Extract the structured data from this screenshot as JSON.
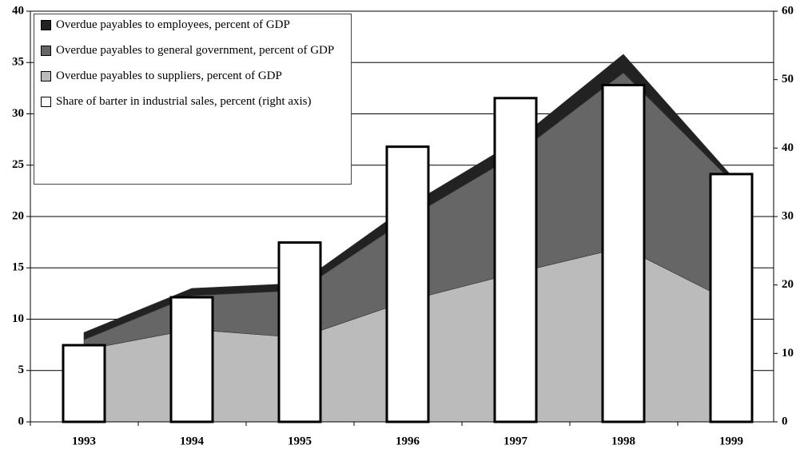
{
  "chart_data": {
    "type": "stacked-area-bar",
    "categories": [
      "1993",
      "1994",
      "1995",
      "1996",
      "1997",
      "1998",
      "1999"
    ],
    "series": [
      {
        "name": "Overdue payables to suppliers, percent of GDP",
        "color": "#bbbbbb",
        "kind": "area",
        "values": [
          7.0,
          9.0,
          8.2,
          11.8,
          14.5,
          17.0,
          11.7
        ]
      },
      {
        "name": "Overdue payables to general government, percent of GDP",
        "color": "#666666",
        "kind": "area",
        "values": [
          1.0,
          3.3,
          4.6,
          8.0,
          11.5,
          17.0,
          11.8
        ]
      },
      {
        "name": "Overdue payables to employees, percent of GDP",
        "color": "#222222",
        "kind": "area",
        "values": [
          0.7,
          0.7,
          0.7,
          1.2,
          1.3,
          1.8,
          0.5
        ]
      },
      {
        "name": "Share of barter in industrial sales, percent (right axis)",
        "color": "#ffffff",
        "kind": "bar",
        "axis": "y2",
        "values": [
          11.2,
          18.2,
          26.2,
          40.2,
          47.3,
          49.2,
          36.2
        ]
      }
    ],
    "legend_order": [
      2,
      1,
      0,
      3
    ],
    "ylim": [
      0,
      40
    ],
    "yticks": [
      0,
      5,
      10,
      15,
      20,
      25,
      30,
      35,
      40
    ],
    "y2lim": [
      0,
      60
    ],
    "y2ticks": [
      0,
      10,
      20,
      30,
      40,
      50,
      60
    ],
    "grid": true
  }
}
